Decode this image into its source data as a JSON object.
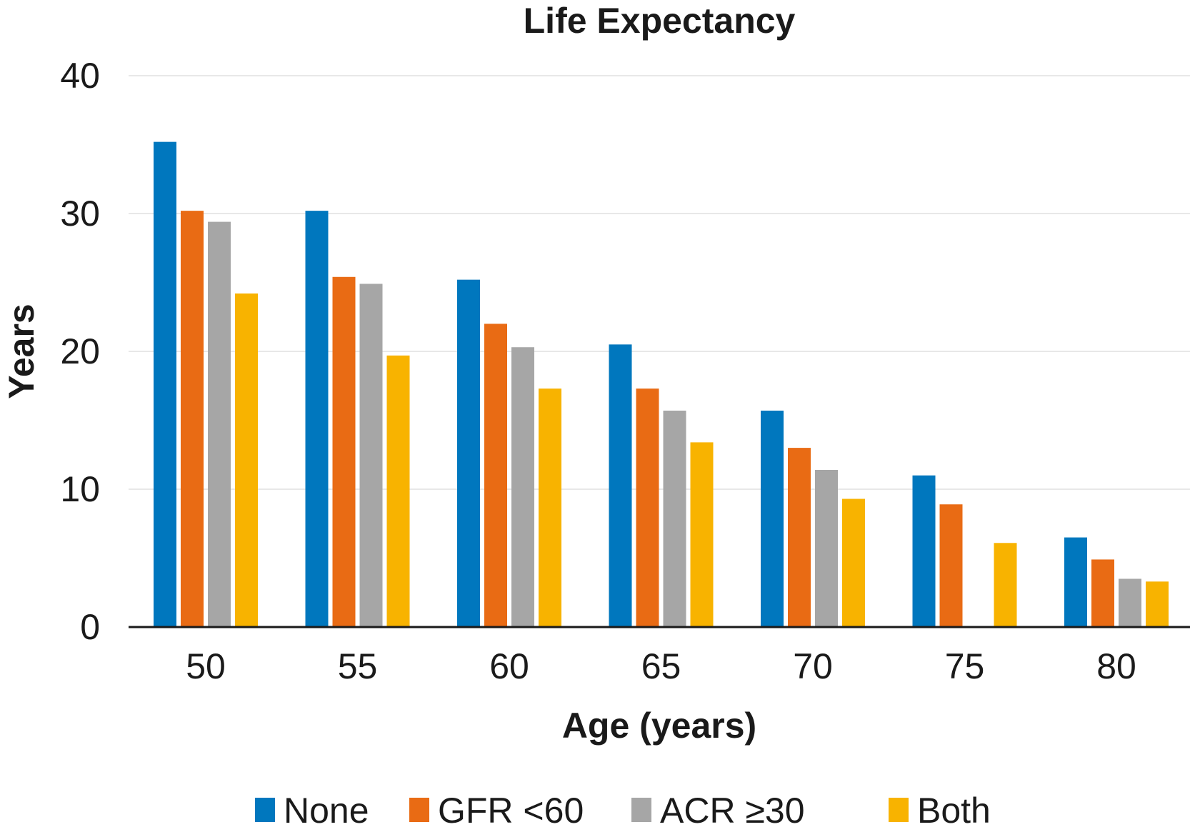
{
  "chart_data": {
    "type": "bar",
    "title": "Life Expectancy",
    "xlabel": "Age (years)",
    "ylabel": "Years",
    "ylim": [
      0,
      40
    ],
    "yticks": [
      "0",
      "10",
      "20",
      "30",
      "40"
    ],
    "categories": [
      "50",
      "55",
      "60",
      "65",
      "70",
      "75",
      "80"
    ],
    "series": [
      {
        "name": "None",
        "color": "#0077be",
        "values": [
          35.2,
          30.2,
          25.2,
          20.5,
          15.7,
          11.0,
          6.5
        ]
      },
      {
        "name": "GFR <60",
        "color": "#e96b14",
        "values": [
          30.2,
          25.4,
          22.0,
          17.3,
          13.0,
          8.9,
          4.9
        ]
      },
      {
        "name": "ACR ≥30",
        "color": "#a6a6a6",
        "values": [
          29.4,
          24.9,
          20.3,
          15.7,
          11.4,
          null,
          3.5
        ]
      },
      {
        "name": "Both",
        "color": "#f8b300",
        "values": [
          24.2,
          19.7,
          17.3,
          13.4,
          9.3,
          6.1,
          3.3
        ]
      }
    ],
    "grid": true,
    "legend_position": "bottom"
  }
}
